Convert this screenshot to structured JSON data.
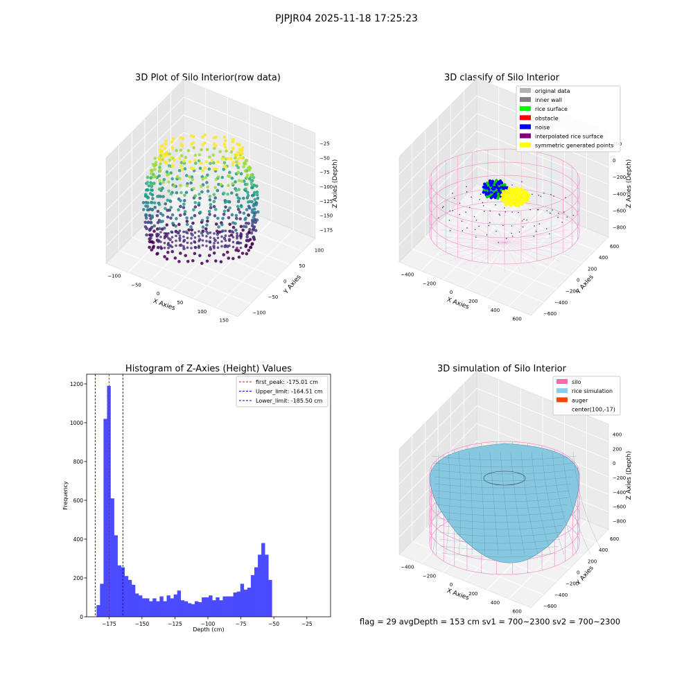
{
  "suptitle": "PJPJR04 2025-11-18 17:25:23",
  "colors": {
    "hist_bar": "#4b4bff",
    "first_peak": "#ff0000",
    "limit": "#0000cc",
    "silo_wire": "#f48ccf",
    "rice_fill": "#87c7df",
    "pane_floor": "#f2f2f2",
    "pane_wall": "#ebebeb"
  },
  "panel_tl": {
    "title": "3D Plot of Silo Interior(row data)",
    "x_label": "X Axies",
    "y_label": "Y Axies",
    "z_label": "Z Axies (Depth)",
    "x_ticks": [
      "−100",
      "−50",
      "0",
      "50",
      "100",
      "150"
    ],
    "y_ticks": [
      "100",
      "50",
      "0",
      "−50",
      "−100"
    ],
    "z_ticks": [
      "−25",
      "−50",
      "−75",
      "−100",
      "−125",
      "−150",
      "−175"
    ],
    "colormap": "viridis"
  },
  "panel_tr": {
    "title": "3D classify of Silo Interior",
    "x_label": "X Axies",
    "y_label": "Y Axies",
    "z_label": "Z Axies (Depth)",
    "x_ticks": [
      "−400",
      "−200",
      "0",
      "200",
      "400",
      "600"
    ],
    "y_ticks": [
      "600",
      "400",
      "200",
      "0",
      "−200",
      "−400",
      "−600"
    ],
    "z_ticks": [
      "200",
      "0",
      "−200",
      "−400",
      "−600",
      "−800"
    ],
    "z_partial_tick": "0",
    "legend": [
      {
        "label": "original data",
        "color": "#b3b3b3"
      },
      {
        "label": "inner wall",
        "color": "#808080"
      },
      {
        "label": "rice surface",
        "color": "#00ff00"
      },
      {
        "label": "obstacle",
        "color": "#ff0000"
      },
      {
        "label": "noise",
        "color": "#0000ff"
      },
      {
        "label": "interpolated rice surface",
        "color": "#800080"
      },
      {
        "label": "symmetric generated points",
        "color": "#ffff00"
      }
    ]
  },
  "panel_br": {
    "title": "3D simulation of Silo Interior",
    "x_label": "X Axies",
    "y_label": "Y Axies",
    "z_label": "Z Axies (Depth)",
    "x_ticks": [
      "−400",
      "−200",
      "0",
      "200",
      "400",
      "600"
    ],
    "y_ticks": [
      "600",
      "400",
      "200",
      "0",
      "−200",
      "−400",
      "−600"
    ],
    "z_ticks": [
      "400",
      "200",
      "0",
      "−200",
      "−400",
      "−600",
      "−800"
    ],
    "legend": [
      {
        "label": "silo",
        "color": "#ff69b4"
      },
      {
        "label": "rice simulation",
        "color": "#87ceeb"
      },
      {
        "label": "auger",
        "color": "#ff4500"
      },
      {
        "label": "center(100,-17)",
        "color": ""
      }
    ]
  },
  "status_line": "flag = 29  avgDepth = 153 cm  sv1 = 700~2300  sv2 = 700~2300",
  "chart_data": {
    "type": "bar",
    "title": "Histogram of Z-Axies (Height) Values",
    "xlabel": "Depth (cm)",
    "ylabel": "Frequency",
    "xlim": [
      -192,
      -7
    ],
    "ylim": [
      0,
      1250
    ],
    "x_ticks": [
      -175,
      -150,
      -125,
      -100,
      -75,
      -50,
      -25
    ],
    "x_tick_labels": [
      "−175",
      "−150",
      "−125",
      "−100",
      "−75",
      "−50",
      "−25"
    ],
    "y_ticks": [
      0,
      200,
      400,
      600,
      800,
      1000,
      1200
    ],
    "y_tick_labels": [
      "0",
      "200",
      "400",
      "600",
      "800",
      "1000",
      "1200"
    ],
    "bin_edges_start": -184.5,
    "bin_width": 2.66,
    "values": [
      60,
      170,
      1020,
      1190,
      610,
      420,
      265,
      255,
      210,
      190,
      165,
      120,
      110,
      95,
      95,
      80,
      95,
      80,
      105,
      80,
      110,
      95,
      115,
      135,
      85,
      80,
      70,
      65,
      80,
      75,
      100,
      100,
      110,
      85,
      100,
      85,
      105,
      105,
      105,
      125,
      130,
      170,
      140,
      150,
      215,
      255,
      320,
      380,
      320,
      190
    ],
    "vlines": [
      {
        "label": "first_peak: -175.01 cm",
        "x": -175.01,
        "style": "first_peak"
      },
      {
        "label": "Upper_limit: -164.51 cm",
        "x": -164.51,
        "style": "limit"
      },
      {
        "label": "Lower_limit: -185.50 cm",
        "x": -185.5,
        "style": "limit"
      }
    ],
    "legend_loc": "upper right",
    "grid": false
  }
}
